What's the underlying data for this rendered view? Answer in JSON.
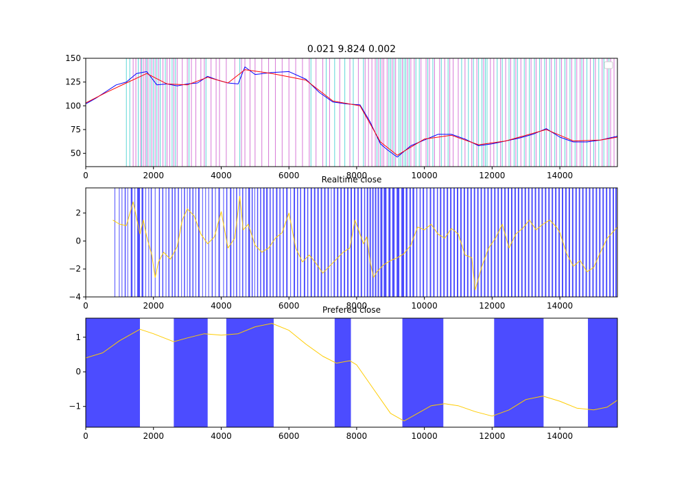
{
  "figure": {
    "title": "0.021 9.824 0.002"
  },
  "chart_data": [
    {
      "type": "line",
      "title": "0.021 9.824 0.002",
      "xlim": [
        0,
        15700
      ],
      "ylim": [
        36,
        150
      ],
      "xticks": [
        0,
        2000,
        4000,
        6000,
        8000,
        10000,
        12000,
        14000
      ],
      "yticks": [
        50,
        75,
        100,
        125,
        150
      ],
      "legend": "top-right (empty)",
      "series": [
        {
          "color": "#0000ff",
          "x": [
            0,
            300,
            600,
            900,
            1200,
            1500,
            1800,
            2100,
            2400,
            2700,
            3000,
            3300,
            3600,
            3900,
            4200,
            4500,
            4700,
            5000,
            5500,
            6000,
            6500,
            6900,
            7300,
            7700,
            8100,
            8400,
            8700,
            8900,
            9200,
            9600,
            10000,
            10400,
            10800,
            11200,
            11600,
            12000,
            12400,
            12800,
            13200,
            13600,
            14000,
            14400,
            14800,
            15200,
            15700
          ],
          "values": [
            102,
            108,
            115,
            122,
            125,
            134,
            136,
            122,
            123,
            121,
            123,
            124,
            131,
            127,
            124,
            123,
            141,
            133,
            135,
            136,
            128,
            114,
            104,
            102,
            101,
            83,
            60,
            54,
            46,
            58,
            64,
            70,
            70,
            65,
            58,
            60,
            63,
            66,
            70,
            76,
            67,
            62,
            62,
            64,
            68
          ]
        },
        {
          "color": "#ff0000",
          "x": [
            0,
            600,
            1200,
            1800,
            2400,
            3000,
            3600,
            4200,
            4700,
            5500,
            6500,
            7300,
            8100,
            8700,
            9200,
            10000,
            10800,
            11600,
            12400,
            13200,
            13600,
            14400,
            15200,
            15700
          ],
          "values": [
            103,
            114,
            124,
            134,
            123,
            122,
            130,
            124,
            138,
            134,
            127,
            105,
            100,
            62,
            48,
            65,
            69,
            59,
            63,
            71,
            75,
            63,
            64,
            67
          ]
        }
      ],
      "signal_lines": {
        "magenta": [
          1400,
          1480,
          1620,
          1700,
          1760,
          1840,
          1950,
          2050,
          2150,
          2280,
          2400,
          2480,
          2600,
          2700,
          2850,
          3000,
          3120,
          3250,
          3400,
          3500,
          3700,
          3850,
          3950,
          4150,
          4400,
          4600,
          4700,
          4850,
          5000,
          5200,
          5400,
          5600,
          5800,
          6000,
          6200,
          6400,
          6600,
          6800,
          7000,
          7200,
          7500,
          7800,
          8050,
          8250,
          8350,
          8450,
          8550,
          8650,
          8750,
          8800,
          8900,
          9050,
          9150,
          9350,
          9500,
          9600,
          9700,
          9900,
          10050,
          10150,
          10300,
          10450,
          10600,
          10750,
          10850,
          11000,
          11200,
          11400,
          11550,
          11750,
          11950,
          12050,
          12250,
          12400,
          12550,
          12700,
          12850,
          13000,
          13150,
          13300,
          13450,
          13600,
          13750,
          13900,
          14050,
          14200,
          14350,
          14500,
          14600,
          14700,
          14900,
          15050,
          15250,
          15400,
          15500,
          15600
        ],
        "cyan": [
          1200,
          1300,
          1550,
          1650,
          1800,
          1900,
          2000,
          2100,
          2200,
          2350,
          2550,
          2650,
          3050,
          3550,
          4550,
          6650,
          7100,
          7350,
          7650,
          7900,
          8200,
          8600,
          8700,
          8950,
          9000,
          9100,
          9250,
          9300,
          9400,
          9450,
          9550,
          9750,
          9850,
          10100,
          10250,
          10500,
          10700,
          11100,
          11300,
          11450,
          11600,
          11700,
          11800,
          11850,
          12150,
          12300,
          12500,
          12650,
          12750,
          12950,
          13100,
          13250,
          13400,
          13550,
          13700,
          13850,
          14000,
          14150,
          14300,
          14450,
          14650,
          14800,
          15000,
          15150,
          15300,
          15450
        ]
      }
    },
    {
      "type": "line",
      "title": "Realtime close",
      "xlim": [
        0,
        15700
      ],
      "ylim": [
        -4,
        3.8
      ],
      "xticks": [
        0,
        2000,
        4000,
        6000,
        8000,
        10000,
        12000,
        14000
      ],
      "yticks": [
        -4,
        -2,
        0,
        2
      ],
      "series": [
        {
          "color": "#ffcc00",
          "x": [
            800,
            1000,
            1200,
            1400,
            1600,
            1700,
            1800,
            1950,
            2050,
            2150,
            2300,
            2500,
            2700,
            2850,
            3000,
            3200,
            3400,
            3600,
            3800,
            4000,
            4200,
            4400,
            4550,
            4650,
            4800,
            5000,
            5200,
            5400,
            5600,
            5800,
            6000,
            6200,
            6400,
            6600,
            6800,
            7000,
            7200,
            7400,
            7600,
            7800,
            7950,
            8100,
            8200,
            8300,
            8400,
            8500,
            8600,
            8800,
            9000,
            9200,
            9400,
            9600,
            9800,
            10000,
            10200,
            10400,
            10600,
            10800,
            11000,
            11200,
            11400,
            11500,
            11700,
            11900,
            12100,
            12300,
            12500,
            12700,
            12900,
            13100,
            13300,
            13500,
            13700,
            13900,
            14000,
            14200,
            14400,
            14600,
            14800,
            15000,
            15200,
            15400,
            15700
          ],
          "values": [
            1.5,
            1.2,
            1.1,
            2.8,
            0.5,
            1.5,
            0.3,
            -1.0,
            -2.6,
            -1.5,
            -0.8,
            -1.3,
            -0.4,
            1.5,
            2.3,
            1.8,
            0.5,
            -0.2,
            0.3,
            2.1,
            -0.5,
            0.2,
            3.2,
            0.8,
            1.2,
            -0.3,
            -0.8,
            -0.5,
            0.2,
            0.6,
            2.0,
            -0.5,
            -1.5,
            -1.0,
            -1.6,
            -2.3,
            -1.8,
            -1.3,
            -0.8,
            -0.5,
            1.5,
            0.5,
            -0.2,
            0.3,
            -1.5,
            -2.6,
            -2.2,
            -1.7,
            -1.4,
            -1.2,
            -0.9,
            -0.3,
            1.0,
            0.8,
            1.2,
            0.5,
            0.2,
            0.9,
            0.5,
            -1.0,
            -1.2,
            -3.5,
            -1.8,
            -0.5,
            0.2,
            1.2,
            -0.5,
            0.5,
            0.9,
            1.5,
            0.8,
            1.2,
            1.5,
            1.0,
            0.6,
            -0.9,
            -1.8,
            -1.4,
            -2.2,
            -1.9,
            -0.8,
            0.2,
            1.0
          ]
        }
      ],
      "signal_bands": [
        [
          850,
          870
        ],
        [
          980,
          1000
        ],
        [
          1060,
          1080
        ],
        [
          1150,
          1180
        ],
        [
          1230,
          1250
        ],
        [
          1330,
          1380
        ],
        [
          1440,
          1460
        ],
        [
          1520,
          1600
        ],
        [
          1650,
          1700
        ],
        [
          1760,
          1780
        ],
        [
          1850,
          1870
        ],
        [
          1920,
          1950
        ],
        [
          2040,
          2060
        ],
        [
          2160,
          2190
        ],
        [
          2260,
          2290
        ],
        [
          2360,
          2380
        ],
        [
          2440,
          2470
        ],
        [
          2540,
          2570
        ],
        [
          2620,
          2650
        ],
        [
          2720,
          2750
        ],
        [
          2820,
          2840
        ],
        [
          2900,
          2930
        ],
        [
          2990,
          3010
        ],
        [
          3060,
          3090
        ],
        [
          3150,
          3180
        ],
        [
          3240,
          3260
        ],
        [
          3320,
          3360
        ],
        [
          3440,
          3460
        ],
        [
          3530,
          3550
        ],
        [
          3620,
          3640
        ],
        [
          3720,
          3750
        ],
        [
          3820,
          3840
        ],
        [
          3920,
          3960
        ],
        [
          4060,
          4080
        ],
        [
          4150,
          4180
        ],
        [
          4260,
          4300
        ],
        [
          4360,
          4380
        ],
        [
          4440,
          4470
        ],
        [
          4540,
          4560
        ],
        [
          4620,
          4650
        ],
        [
          4720,
          4740
        ],
        [
          4800,
          4850
        ],
        [
          4900,
          4930
        ],
        [
          4980,
          5000
        ],
        [
          5060,
          5090
        ],
        [
          5150,
          5180
        ],
        [
          5240,
          5280
        ],
        [
          5330,
          5370
        ],
        [
          5430,
          5460
        ],
        [
          5520,
          5550
        ],
        [
          5620,
          5660
        ],
        [
          5720,
          5750
        ],
        [
          5820,
          5850
        ],
        [
          5920,
          5960
        ],
        [
          6040,
          6060
        ],
        [
          6140,
          6180
        ],
        [
          6240,
          6270
        ],
        [
          6330,
          6360
        ],
        [
          6440,
          6480
        ],
        [
          6540,
          6570
        ],
        [
          6640,
          6680
        ],
        [
          6740,
          6780
        ],
        [
          6840,
          6880
        ],
        [
          6940,
          6980
        ],
        [
          7040,
          7080
        ],
        [
          7140,
          7180
        ],
        [
          7240,
          7260
        ],
        [
          7320,
          7360
        ],
        [
          7420,
          7460
        ],
        [
          7520,
          7560
        ],
        [
          7620,
          7660
        ],
        [
          7720,
          7760
        ],
        [
          7820,
          7860
        ],
        [
          7920,
          7960
        ],
        [
          8020,
          8060
        ],
        [
          8120,
          8160
        ],
        [
          8220,
          8250
        ],
        [
          8300,
          8340
        ],
        [
          8380,
          8420
        ],
        [
          8460,
          8500
        ],
        [
          8540,
          8580
        ],
        [
          8620,
          8660
        ],
        [
          8700,
          8760
        ],
        [
          8800,
          8880
        ],
        [
          8940,
          9000
        ],
        [
          9050,
          9120
        ],
        [
          9180,
          9260
        ],
        [
          9320,
          9400
        ],
        [
          9450,
          9500
        ],
        [
          9560,
          9600
        ],
        [
          9650,
          9700
        ],
        [
          9760,
          9790
        ],
        [
          9860,
          9890
        ],
        [
          9950,
          9990
        ],
        [
          10060,
          10090
        ],
        [
          10160,
          10200
        ],
        [
          10260,
          10300
        ],
        [
          10370,
          10400
        ],
        [
          10460,
          10500
        ],
        [
          10560,
          10600
        ],
        [
          10660,
          10700
        ],
        [
          10760,
          10800
        ],
        [
          10860,
          10900
        ],
        [
          10960,
          11000
        ],
        [
          11060,
          11100
        ],
        [
          11160,
          11200
        ],
        [
          11260,
          11300
        ],
        [
          11360,
          11400
        ],
        [
          11460,
          11500
        ],
        [
          11560,
          11600
        ],
        [
          11660,
          11700
        ],
        [
          11760,
          11800
        ],
        [
          11860,
          11900
        ],
        [
          11960,
          12000
        ],
        [
          12060,
          12100
        ],
        [
          12160,
          12200
        ],
        [
          12260,
          12300
        ],
        [
          12360,
          12400
        ],
        [
          12460,
          12500
        ],
        [
          12560,
          12600
        ],
        [
          12660,
          12700
        ],
        [
          12760,
          12800
        ],
        [
          12860,
          12900
        ],
        [
          12960,
          13000
        ],
        [
          13060,
          13100
        ],
        [
          13160,
          13200
        ],
        [
          13260,
          13300
        ],
        [
          13360,
          13400
        ],
        [
          13460,
          13500
        ],
        [
          13560,
          13600
        ],
        [
          13660,
          13700
        ],
        [
          13760,
          13800
        ],
        [
          13860,
          13900
        ],
        [
          13960,
          14000
        ],
        [
          14060,
          14100
        ],
        [
          14160,
          14200
        ],
        [
          14260,
          14300
        ],
        [
          14360,
          14400
        ],
        [
          14460,
          14500
        ],
        [
          14560,
          14600
        ],
        [
          14660,
          14700
        ],
        [
          14760,
          14800
        ],
        [
          14860,
          14900
        ],
        [
          14960,
          15000
        ],
        [
          15060,
          15100
        ],
        [
          15160,
          15200
        ],
        [
          15260,
          15300
        ],
        [
          15360,
          15400
        ],
        [
          15460,
          15500
        ],
        [
          15560,
          15600
        ],
        [
          15640,
          15680
        ]
      ]
    },
    {
      "type": "line",
      "title": "Prefered close",
      "xlim": [
        0,
        15700
      ],
      "ylim": [
        -1.6,
        1.55
      ],
      "xticks": [
        0,
        2000,
        4000,
        6000,
        8000,
        10000,
        12000,
        14000
      ],
      "yticks": [
        -1,
        0,
        1
      ],
      "series": [
        {
          "color": "#ffcc00",
          "x": [
            0,
            500,
            1000,
            1600,
            2000,
            2600,
            3000,
            3500,
            4000,
            4500,
            5000,
            5500,
            6000,
            6500,
            7000,
            7400,
            7800,
            8000,
            8500,
            9000,
            9400,
            9800,
            10200,
            10600,
            11000,
            11500,
            12000,
            12500,
            13000,
            13500,
            14000,
            14500,
            15000,
            15400,
            15700
          ],
          "values": [
            0.4,
            0.55,
            0.9,
            1.23,
            1.1,
            0.87,
            0.98,
            1.1,
            1.06,
            1.1,
            1.3,
            1.4,
            1.2,
            0.8,
            0.45,
            0.25,
            0.32,
            0.2,
            -0.5,
            -1.2,
            -1.42,
            -1.2,
            -0.98,
            -0.92,
            -0.98,
            -1.15,
            -1.28,
            -1.1,
            -0.8,
            -0.7,
            -0.85,
            -1.05,
            -1.1,
            -1.02,
            -0.82
          ]
        }
      ],
      "signal_bands": [
        [
          0,
          1600
        ],
        [
          2600,
          3600
        ],
        [
          4150,
          5550
        ],
        [
          7350,
          7830
        ],
        [
          9350,
          10560
        ],
        [
          12060,
          13520
        ],
        [
          14830,
          15700
        ]
      ]
    }
  ]
}
